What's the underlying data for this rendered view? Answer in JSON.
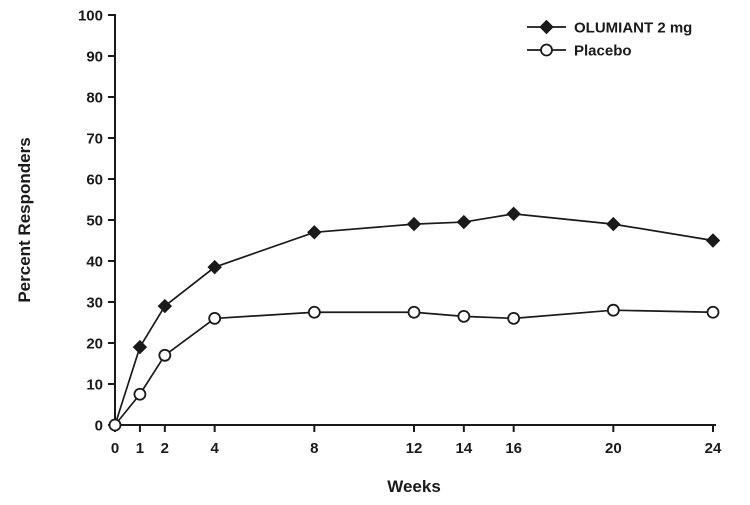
{
  "figure": {
    "kind": "clinical-response-line-chart"
  },
  "chart_data": {
    "type": "line",
    "title": "",
    "xlabel": "Weeks",
    "ylabel": "Percent Responders",
    "xlim": [
      0,
      24
    ],
    "ylim": [
      0,
      100
    ],
    "x_ticks": [
      0,
      1,
      2,
      4,
      8,
      12,
      14,
      16,
      20,
      24
    ],
    "y_ticks": [
      0,
      10,
      20,
      30,
      40,
      50,
      60,
      70,
      80,
      90,
      100
    ],
    "grid": false,
    "legend_position": "top-right",
    "ink_color": "#1a1a1a",
    "background_color": "#ffffff",
    "x": [
      0,
      1,
      2,
      4,
      8,
      12,
      14,
      16,
      20,
      24
    ],
    "series": [
      {
        "name": "OLUMIANT 2 mg",
        "marker": "filled-diamond",
        "color": "#1a1a1a",
        "values": [
          0,
          19,
          29,
          38.5,
          47,
          49,
          49.5,
          51.5,
          49,
          45
        ]
      },
      {
        "name": "Placebo",
        "marker": "open-circle",
        "color": "#1a1a1a",
        "values": [
          0,
          7.5,
          17,
          26,
          27.5,
          27.5,
          26.5,
          26,
          28,
          27.5
        ]
      }
    ]
  }
}
